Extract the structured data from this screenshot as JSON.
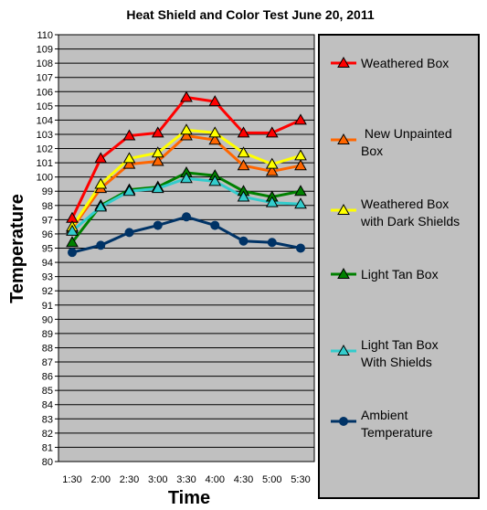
{
  "chart_data": {
    "type": "line",
    "title": "Heat Shield and Color Test June 20, 2011",
    "xlabel": "Time",
    "ylabel": "Temperature",
    "categories": [
      "1:30",
      "2:00",
      "2:30",
      "3:00",
      "3:30",
      "4:00",
      "4:30",
      "5:00",
      "5:30"
    ],
    "ylim": [
      80,
      110
    ],
    "yticks": [
      "80",
      "81",
      "82",
      "83",
      "84",
      "85",
      "86",
      "87",
      "88",
      "89",
      "90",
      "91",
      "92",
      "93",
      "94",
      "95",
      "96",
      "97",
      "98",
      "99",
      "100",
      "101",
      "102",
      "103",
      "104",
      "105",
      "106",
      "107",
      "108",
      "109",
      "110"
    ],
    "grid": true,
    "legend_position": "right",
    "plot_background": "#c0c0c0",
    "series": [
      {
        "name": "Weathered Box",
        "color": "#ff0000",
        "marker": "triangle",
        "values": [
          97.1,
          101.3,
          102.9,
          103.1,
          105.6,
          105.3,
          103.1,
          103.1,
          104.0
        ]
      },
      {
        "name": "New Unpainted Box",
        "legend_lines": [
          " New Unpainted",
          "Box"
        ],
        "color": "#ff6600",
        "marker": "triangle",
        "values": [
          96.4,
          99.2,
          100.9,
          101.1,
          102.9,
          102.6,
          100.8,
          100.4,
          100.8
        ]
      },
      {
        "name": "Weathered Box with Dark Shields",
        "legend_lines": [
          "Weathered Box",
          "with Dark Shields"
        ],
        "color": "#ffff00",
        "marker": "triangle",
        "values": [
          96.5,
          99.5,
          101.3,
          101.7,
          103.3,
          103.1,
          101.7,
          100.9,
          101.5
        ]
      },
      {
        "name": "Light Tan Box",
        "color": "#008000",
        "marker": "triangle",
        "values": [
          95.4,
          98.0,
          99.1,
          99.3,
          100.3,
          100.1,
          99.0,
          98.6,
          99.0
        ]
      },
      {
        "name": "Light Tan Box With Shields",
        "legend_lines": [
          "Light Tan Box",
          "With Shields"
        ],
        "color": "#33cccc",
        "marker": "triangle",
        "values": [
          96.2,
          97.9,
          99.0,
          99.2,
          99.9,
          99.7,
          98.6,
          98.2,
          98.1
        ]
      },
      {
        "name": "Ambient Temperature",
        "legend_lines": [
          "Ambient",
          "Temperature"
        ],
        "color": "#003366",
        "marker": "circle",
        "values": [
          94.7,
          95.2,
          96.1,
          96.6,
          97.2,
          96.6,
          95.5,
          95.4,
          95.0
        ]
      }
    ]
  }
}
